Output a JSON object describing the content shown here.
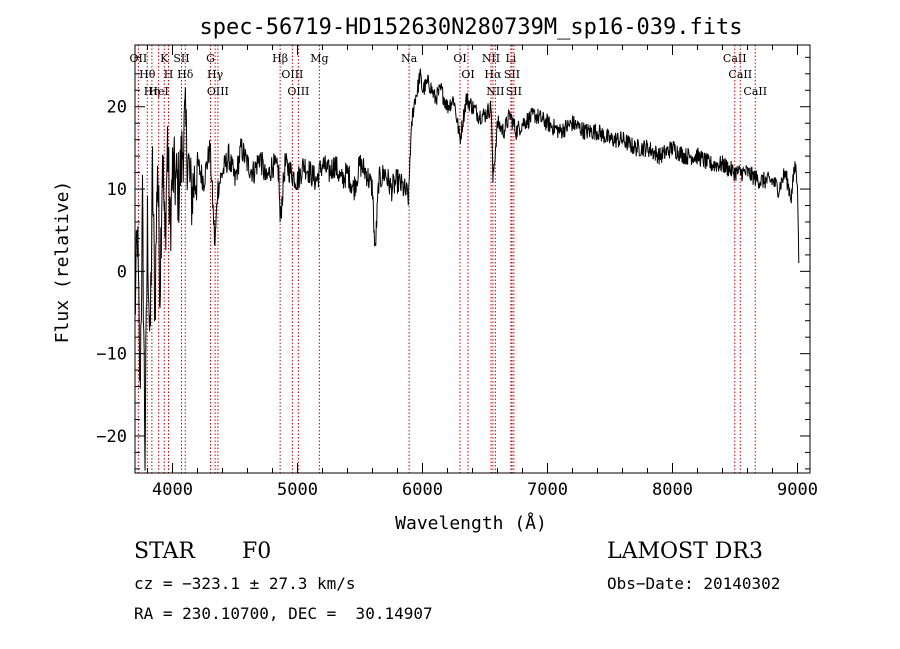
{
  "chart_data": {
    "type": "line",
    "title": "spec-56719-HD152630N280739M_sp16-039.fits",
    "xlabel": "Wavelength (Å)",
    "ylabel": "Flux (relative)",
    "xlim": [
      3700,
      9100
    ],
    "ylim": [
      -24.5,
      27.5
    ],
    "x_ticks": [
      4000,
      5000,
      6000,
      7000,
      8000,
      9000
    ],
    "x_tick_labels": [
      "4000",
      "5000",
      "6000",
      "7000",
      "8000",
      "9000"
    ],
    "y_ticks": [
      -20,
      -10,
      0,
      10,
      20
    ],
    "y_tick_labels": [
      "−20",
      "−10",
      "0",
      "10",
      "20"
    ],
    "grid": false,
    "series": [
      {
        "name": "flux",
        "color": "#000000",
        "x": [
          3700,
          3720,
          3740,
          3760,
          3780,
          3800,
          3820,
          3840,
          3860,
          3880,
          3900,
          3920,
          3940,
          3960,
          3980,
          4000,
          4050,
          4100,
          4150,
          4200,
          4250,
          4300,
          4340,
          4360,
          4400,
          4450,
          4500,
          4550,
          4600,
          4650,
          4700,
          4750,
          4800,
          4850,
          4861,
          4900,
          4950,
          5000,
          5050,
          5100,
          5150,
          5200,
          5250,
          5300,
          5350,
          5400,
          5450,
          5500,
          5550,
          5600,
          5620,
          5650,
          5700,
          5750,
          5800,
          5850,
          5890,
          5900,
          5920,
          5940,
          5960,
          5980,
          6000,
          6050,
          6100,
          6150,
          6200,
          6250,
          6300,
          6350,
          6400,
          6450,
          6500,
          6550,
          6563,
          6600,
          6650,
          6700,
          6750,
          6800,
          6900,
          7000,
          7100,
          7200,
          7300,
          7400,
          7500,
          7600,
          7700,
          7800,
          7900,
          8000,
          8100,
          8200,
          8300,
          8400,
          8500,
          8600,
          8700,
          8800,
          8850,
          8900,
          8950,
          8980,
          9000,
          9010
        ],
        "y": [
          -5,
          5,
          -15,
          8,
          -22,
          6,
          -10,
          12,
          -5,
          14,
          -2,
          15,
          3,
          16,
          5,
          12,
          10,
          18,
          9,
          13,
          11,
          15,
          3,
          10,
          12,
          14,
          11,
          15,
          13,
          12,
          14,
          11,
          13,
          12,
          6,
          13,
          12,
          11,
          13,
          12,
          11,
          13,
          12,
          13,
          11,
          12,
          10,
          13,
          12,
          10,
          2,
          11,
          12,
          10,
          11,
          10,
          9,
          14,
          19,
          21,
          22,
          24,
          22,
          23,
          21,
          22,
          20,
          21,
          16,
          21,
          20,
          19,
          19,
          20,
          11,
          18,
          17,
          19,
          17,
          18,
          19,
          18,
          17,
          18,
          17,
          17,
          16,
          16,
          15,
          15,
          14,
          15,
          14,
          14,
          13,
          13,
          12,
          12,
          11,
          11,
          10,
          12,
          9,
          13,
          11,
          1
        ]
      }
    ],
    "line_markers": [
      {
        "wavelength": 3727,
        "label": "OII"
      },
      {
        "wavelength": 3798,
        "label": "Hθ"
      },
      {
        "wavelength": 3835,
        "label": "Hη"
      },
      {
        "wavelength": 3889,
        "label": "HeI"
      },
      {
        "wavelength": 3934,
        "label": "K"
      },
      {
        "wavelength": 3968,
        "label": "H"
      },
      {
        "wavelength": 4072,
        "label": "SII"
      },
      {
        "wavelength": 4102,
        "label": "Hδ"
      },
      {
        "wavelength": 4304,
        "label": "G"
      },
      {
        "wavelength": 4341,
        "label": "Hγ"
      },
      {
        "wavelength": 4363,
        "label": "OIII"
      },
      {
        "wavelength": 4861,
        "label": "Hβ"
      },
      {
        "wavelength": 4959,
        "label": "OIII"
      },
      {
        "wavelength": 5007,
        "label": "OIII"
      },
      {
        "wavelength": 5175,
        "label": "Mg"
      },
      {
        "wavelength": 5893,
        "label": "Na"
      },
      {
        "wavelength": 6300,
        "label": "OI"
      },
      {
        "wavelength": 6364,
        "label": "OI"
      },
      {
        "wavelength": 6548,
        "label": "NII"
      },
      {
        "wavelength": 6563,
        "label": "Hα"
      },
      {
        "wavelength": 6583,
        "label": "NII"
      },
      {
        "wavelength": 6707,
        "label": "Li"
      },
      {
        "wavelength": 6716,
        "label": "SII"
      },
      {
        "wavelength": 6731,
        "label": "SII"
      },
      {
        "wavelength": 8498,
        "label": "CaII"
      },
      {
        "wavelength": 8542,
        "label": "CaII"
      },
      {
        "wavelength": 8662,
        "label": "CaII"
      }
    ],
    "marker_color": "#cc0000"
  },
  "info": {
    "object_class": "STAR",
    "subclass": "F0",
    "survey": "LAMOST DR3",
    "cz": "cz = −323.1 ± 27.3 km/s",
    "obs_date": "Obs−Date: 20140302",
    "coords": "RA = 230.10700, DEC =  30.14907"
  }
}
